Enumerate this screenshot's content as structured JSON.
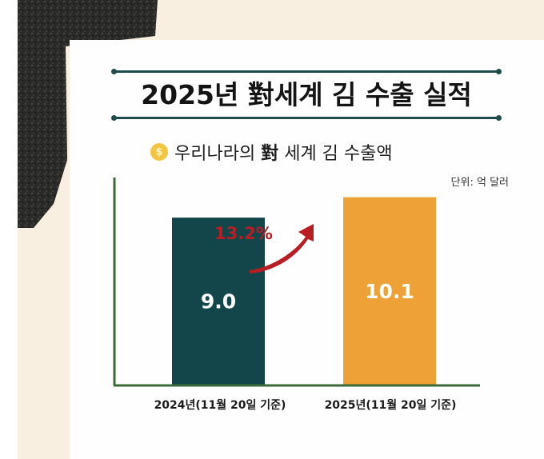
{
  "title": "2025년  對세계 김 수출 실적",
  "subtitle": {
    "prefix": "우리나라의 ",
    "bold": "對",
    "suffix": " 세계 김 수출액"
  },
  "coin_icon": "dollar-coin-icon",
  "unit": "단위: 억 달러",
  "growth": {
    "label": "13.2%",
    "color": "#b81d24"
  },
  "colors": {
    "bar_2024": "#12464a",
    "bar_2025": "#eda137",
    "axis": "#3b6b3a",
    "title_rule": "#1f4b4a"
  },
  "chart_data": {
    "type": "bar",
    "title": "2025년  對세계 김 수출 실적",
    "subtitle": "우리나라의 對 세계 김 수출액",
    "categories": [
      "2024년(11월 20일 기준)",
      "2025년(11월 20일 기준)"
    ],
    "values": [
      9.0,
      10.1
    ],
    "value_labels": [
      "9.0",
      "10.1"
    ],
    "ylabel": "",
    "unit": "단위: 억 달러",
    "annotation": "13.2%",
    "grid": false,
    "legend": "none",
    "ylim": [
      0,
      10.6
    ]
  }
}
